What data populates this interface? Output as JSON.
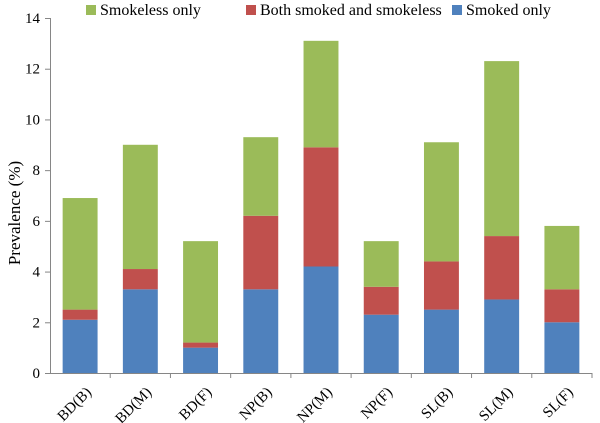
{
  "chart_data": {
    "type": "bar",
    "stacked": true,
    "categories": [
      "BD(B)",
      "BD(M)",
      "BD(F)",
      "NP(B)",
      "NP(M)",
      "NP(F)",
      "SL(B)",
      "SL(M)",
      "SL(F)"
    ],
    "series": [
      {
        "name": "Smoked only",
        "color": "#4F81BD",
        "values": [
          2.1,
          3.3,
          1.0,
          3.3,
          4.2,
          2.3,
          2.5,
          2.9,
          2.0
        ]
      },
      {
        "name": "Both smoked and smokeless",
        "color": "#C0504D",
        "values": [
          0.4,
          0.8,
          0.2,
          2.9,
          4.7,
          1.1,
          1.9,
          2.5,
          1.3
        ]
      },
      {
        "name": "Smokeless only",
        "color": "#9BBB59",
        "values": [
          4.4,
          4.9,
          4.0,
          3.1,
          4.2,
          1.8,
          4.7,
          6.9,
          2.5
        ]
      }
    ],
    "legend_order": [
      "Smokeless only",
      "Both smoked and smokeless",
      "Smoked only"
    ],
    "title": "",
    "xlabel": "",
    "ylabel": "Prevalence (%)",
    "ylim": [
      0,
      14
    ],
    "yticks": [
      "0",
      "2",
      "4",
      "6",
      "8",
      "10",
      "12",
      "14"
    ],
    "grid": false,
    "legend_position": "top"
  }
}
